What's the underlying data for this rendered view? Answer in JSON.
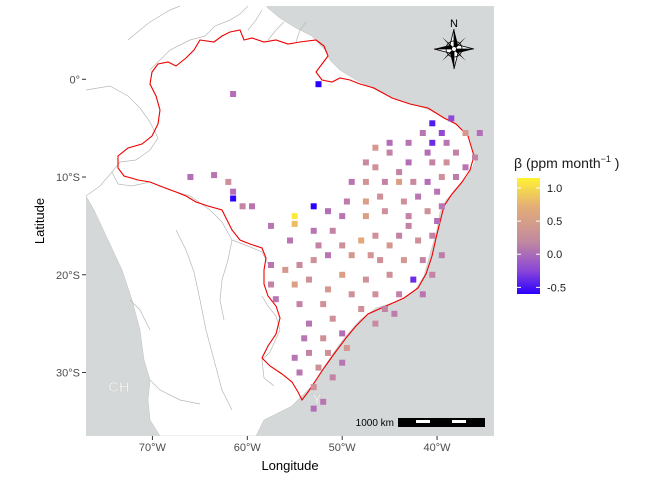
{
  "map": {
    "xlabel": "Longitude",
    "ylabel": "Latitude",
    "x_ticks": [
      {
        "value": -70,
        "label": "70°W"
      },
      {
        "value": -60,
        "label": "60°W"
      },
      {
        "value": -50,
        "label": "50°W"
      },
      {
        "value": -40,
        "label": "40°W"
      }
    ],
    "y_ticks": [
      {
        "value": 0,
        "label": "0°"
      },
      {
        "value": -10,
        "label": "10°S"
      },
      {
        "value": -20,
        "label": "20°S"
      },
      {
        "value": -30,
        "label": "30°S"
      }
    ],
    "xlim": [
      -77,
      -34
    ],
    "ylim": [
      -36.5,
      7.5
    ],
    "background_labels": [
      "CH",
      "Y"
    ],
    "colors": {
      "ocean": "#d5d8d9",
      "land": "#ffffff",
      "country_border": "#b5b5b5",
      "brazil_border": "#ee0000"
    }
  },
  "legend": {
    "title": "β (ppm  month",
    "title_exponent": "−1",
    "title_close": " )",
    "ticks": [
      {
        "value": 1.0,
        "label": "1.0"
      },
      {
        "value": 0.5,
        "label": "0.5"
      },
      {
        "value": 0.0,
        "label": "0.0"
      },
      {
        "value": -0.5,
        "label": "-0.5"
      }
    ],
    "range": [
      -0.6,
      1.15
    ],
    "colors": [
      "#2b00ff",
      "#9a4fd1",
      "#cd8e9b",
      "#e9b070",
      "#fff233"
    ]
  },
  "scalebar": {
    "label": "1000 km"
  },
  "compass": {
    "label": "N"
  },
  "chart_data": {
    "type": "heatmap",
    "xlabel": "Longitude",
    "ylabel": "Latitude",
    "legend_title": "β (ppm month⁻¹)",
    "points": [
      {
        "lon": -52.5,
        "lat": -0.5,
        "beta": -0.6
      },
      {
        "lon": -61.5,
        "lat": -1.5,
        "beta": 0.05
      },
      {
        "lon": -40.5,
        "lat": -4.5,
        "beta": -0.45
      },
      {
        "lon": -38.5,
        "lat": -4.0,
        "beta": -0.2
      },
      {
        "lon": -41.5,
        "lat": -5.5,
        "beta": 0.1
      },
      {
        "lon": -39.5,
        "lat": -5.5,
        "beta": -0.2
      },
      {
        "lon": -40.5,
        "lat": -6.5,
        "beta": -0.35
      },
      {
        "lon": -37.0,
        "lat": -5.5,
        "beta": 0.4
      },
      {
        "lon": -35.5,
        "lat": -5.5,
        "beta": 0.05
      },
      {
        "lon": -39.0,
        "lat": -6.5,
        "beta": 0.1
      },
      {
        "lon": -41.0,
        "lat": -7.5,
        "beta": 0.05
      },
      {
        "lon": -43.0,
        "lat": -6.5,
        "beta": 0.1
      },
      {
        "lon": -38.0,
        "lat": -7.5,
        "beta": 0.2
      },
      {
        "lon": -45.0,
        "lat": -6.5,
        "beta": 0.05
      },
      {
        "lon": -45.0,
        "lat": -7.5,
        "beta": 0.2
      },
      {
        "lon": -46.5,
        "lat": -7.0,
        "beta": 0.4
      },
      {
        "lon": -36.0,
        "lat": -8.0,
        "beta": 0.2
      },
      {
        "lon": -39.0,
        "lat": -8.5,
        "beta": 0.3
      },
      {
        "lon": -40.5,
        "lat": -8.5,
        "beta": 0.2
      },
      {
        "lon": -43.0,
        "lat": -8.5,
        "beta": 0.05
      },
      {
        "lon": -44.0,
        "lat": -9.5,
        "beta": 0.2
      },
      {
        "lon": -46.5,
        "lat": -9.0,
        "beta": 0.3
      },
      {
        "lon": -47.5,
        "lat": -8.5,
        "beta": 0.25
      },
      {
        "lon": -38.0,
        "lat": -10.0,
        "beta": 0.15
      },
      {
        "lon": -39.5,
        "lat": -10.0,
        "beta": 0.3
      },
      {
        "lon": -41.0,
        "lat": -10.5,
        "beta": 0.05
      },
      {
        "lon": -42.5,
        "lat": -10.5,
        "beta": 0.25
      },
      {
        "lon": -44.0,
        "lat": -10.5,
        "beta": 0.5
      },
      {
        "lon": -45.5,
        "lat": -10.5,
        "beta": 0.2
      },
      {
        "lon": -47.5,
        "lat": -10.5,
        "beta": 0.35
      },
      {
        "lon": -49.0,
        "lat": -10.5,
        "beta": 0.1
      },
      {
        "lon": -40.0,
        "lat": -11.5,
        "beta": 0.1
      },
      {
        "lon": -42.0,
        "lat": -12.0,
        "beta": 0.1
      },
      {
        "lon": -43.5,
        "lat": -12.5,
        "beta": 0.3
      },
      {
        "lon": -46.0,
        "lat": -12.0,
        "beta": 0.3
      },
      {
        "lon": -47.5,
        "lat": -12.5,
        "beta": 0.5
      },
      {
        "lon": -49.5,
        "lat": -12.5,
        "beta": 0.15
      },
      {
        "lon": -39.5,
        "lat": -13.0,
        "beta": 0.1
      },
      {
        "lon": -41.0,
        "lat": -13.5,
        "beta": 0.3
      },
      {
        "lon": -43.0,
        "lat": -14.0,
        "beta": 0.2
      },
      {
        "lon": -45.5,
        "lat": -13.5,
        "beta": 0.3
      },
      {
        "lon": -47.5,
        "lat": -14.0,
        "beta": 0.5
      },
      {
        "lon": -50.0,
        "lat": -14.0,
        "beta": 0.1
      },
      {
        "lon": -51.5,
        "lat": -13.5,
        "beta": 0.05
      },
      {
        "lon": -53.0,
        "lat": -13.0,
        "beta": -0.6
      },
      {
        "lon": -55.0,
        "lat": -14.0,
        "beta": 1.1
      },
      {
        "lon": -55.0,
        "lat": -14.8,
        "beta": 0.8
      },
      {
        "lon": -57.5,
        "lat": -15.0,
        "beta": 0.1
      },
      {
        "lon": -53.0,
        "lat": -15.5,
        "beta": 0.1
      },
      {
        "lon": -51.0,
        "lat": -15.5,
        "beta": 0.2
      },
      {
        "lon": -48.0,
        "lat": -16.5,
        "beta": 0.6
      },
      {
        "lon": -46.5,
        "lat": -16.0,
        "beta": 0.3
      },
      {
        "lon": -44.0,
        "lat": -16.0,
        "beta": 0.2
      },
      {
        "lon": -42.0,
        "lat": -16.5,
        "beta": 0.3
      },
      {
        "lon": -40.5,
        "lat": -16.0,
        "beta": 0.2
      },
      {
        "lon": -45.0,
        "lat": -17.0,
        "beta": 0.4
      },
      {
        "lon": -55.5,
        "lat": -16.5,
        "beta": 0.1
      },
      {
        "lon": -49.0,
        "lat": -18.0,
        "beta": 0.4
      },
      {
        "lon": -51.5,
        "lat": -18.0,
        "beta": 0.1
      },
      {
        "lon": -53.0,
        "lat": -18.5,
        "beta": 0.3
      },
      {
        "lon": -54.5,
        "lat": -19.0,
        "beta": 0.25
      },
      {
        "lon": -46.0,
        "lat": -18.5,
        "beta": 0.3
      },
      {
        "lon": -43.5,
        "lat": -18.5,
        "beta": 0.4
      },
      {
        "lon": -41.5,
        "lat": -18.5,
        "beta": 0.2
      },
      {
        "lon": -39.5,
        "lat": -18.0,
        "beta": 0.15
      },
      {
        "lon": -56.0,
        "lat": -19.5,
        "beta": 0.4
      },
      {
        "lon": -57.5,
        "lat": -19.0,
        "beta": 0.1
      },
      {
        "lon": -50.0,
        "lat": -20.0,
        "beta": 0.5
      },
      {
        "lon": -47.5,
        "lat": -20.5,
        "beta": 0.3
      },
      {
        "lon": -45.0,
        "lat": -20.0,
        "beta": 0.3
      },
      {
        "lon": -42.5,
        "lat": -20.5,
        "beta": -0.35
      },
      {
        "lon": -40.5,
        "lat": -20.0,
        "beta": 0.2
      },
      {
        "lon": -53.5,
        "lat": -20.5,
        "beta": 0.3
      },
      {
        "lon": -55.0,
        "lat": -21.0,
        "beta": 0.5
      },
      {
        "lon": -57.5,
        "lat": -21.0,
        "beta": 0.2
      },
      {
        "lon": -51.5,
        "lat": -21.5,
        "beta": 0.4
      },
      {
        "lon": -49.0,
        "lat": -22.0,
        "beta": 0.3
      },
      {
        "lon": -46.5,
        "lat": -22.0,
        "beta": 0.3
      },
      {
        "lon": -44.0,
        "lat": -22.0,
        "beta": 0.2
      },
      {
        "lon": -41.5,
        "lat": -22.0,
        "beta": 0.1
      },
      {
        "lon": -57.0,
        "lat": -22.5,
        "beta": 0.1
      },
      {
        "lon": -54.5,
        "lat": -23.0,
        "beta": 0.2
      },
      {
        "lon": -52.0,
        "lat": -23.0,
        "beta": 0.3
      },
      {
        "lon": -48.0,
        "lat": -23.5,
        "beta": 0.3
      },
      {
        "lon": -45.5,
        "lat": -23.5,
        "beta": 0.2
      },
      {
        "lon": -51.0,
        "lat": -24.5,
        "beta": 0.3
      },
      {
        "lon": -53.5,
        "lat": -25.0,
        "beta": 0.1
      },
      {
        "lon": -50.0,
        "lat": -26.0,
        "beta": 0.05
      },
      {
        "lon": -52.0,
        "lat": -26.5,
        "beta": 0.3
      },
      {
        "lon": -54.0,
        "lat": -26.5,
        "beta": 0.1
      },
      {
        "lon": -49.5,
        "lat": -27.5,
        "beta": 0.4
      },
      {
        "lon": -51.5,
        "lat": -28.0,
        "beta": 0.3
      },
      {
        "lon": -53.5,
        "lat": -28.0,
        "beta": 0.2
      },
      {
        "lon": -55.0,
        "lat": -28.5,
        "beta": 0.1
      },
      {
        "lon": -50.0,
        "lat": -29.0,
        "beta": 0.1
      },
      {
        "lon": -52.5,
        "lat": -29.5,
        "beta": 0.3
      },
      {
        "lon": -54.5,
        "lat": -30.0,
        "beta": 0.1
      },
      {
        "lon": -51.0,
        "lat": -30.5,
        "beta": 0.2
      },
      {
        "lon": -53.0,
        "lat": -31.5,
        "beta": 0.3
      },
      {
        "lon": -52.0,
        "lat": -33.0,
        "beta": 0.1
      },
      {
        "lon": -53.0,
        "lat": -33.7,
        "beta": 0.05
      },
      {
        "lon": -61.5,
        "lat": -11.5,
        "beta": 0.05
      },
      {
        "lon": -61.5,
        "lat": -12.2,
        "beta": -0.6
      },
      {
        "lon": -63.5,
        "lat": -9.8,
        "beta": 0.1
      },
      {
        "lon": -62.0,
        "lat": -10.5,
        "beta": 0.3
      },
      {
        "lon": -66.0,
        "lat": -10.0,
        "beta": 0.05
      },
      {
        "lon": -59.5,
        "lat": -13.0,
        "beta": 0.1
      },
      {
        "lon": -60.5,
        "lat": -13.0,
        "beta": 0.2
      },
      {
        "lon": -37.0,
        "lat": -9.0,
        "beta": 0.1
      },
      {
        "lon": -40.0,
        "lat": -14.5,
        "beta": 0.05
      },
      {
        "lon": -43.0,
        "lat": -15.0,
        "beta": 0.2
      },
      {
        "lon": -52.5,
        "lat": -17.0,
        "beta": 0.2
      },
      {
        "lon": -50.0,
        "lat": -17.0,
        "beta": 0.3
      },
      {
        "lon": -47.0,
        "lat": -18.0,
        "beta": 0.35
      },
      {
        "lon": -44.5,
        "lat": -24.0,
        "beta": 0.15
      },
      {
        "lon": -46.5,
        "lat": -25.0,
        "beta": 0.25
      }
    ]
  }
}
